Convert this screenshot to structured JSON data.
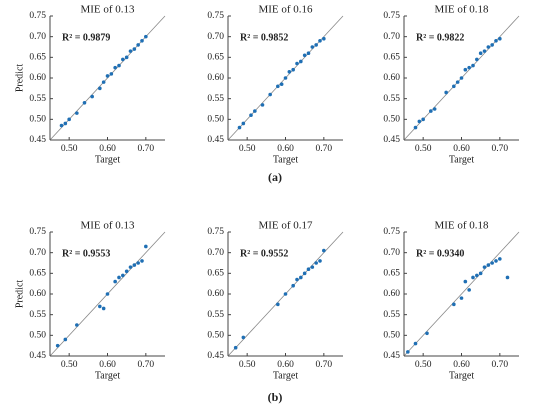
{
  "chart_data": [
    {
      "type": "scatter",
      "title": "MIE of 0.13",
      "annotation": "R² = 0.9879",
      "xlabel": "Target",
      "ylabel": "Predict",
      "x": [
        0.48,
        0.49,
        0.5,
        0.52,
        0.54,
        0.56,
        0.58,
        0.59,
        0.6,
        0.61,
        0.62,
        0.63,
        0.64,
        0.65,
        0.66,
        0.67,
        0.68,
        0.69,
        0.7
      ],
      "y": [
        0.485,
        0.49,
        0.5,
        0.515,
        0.54,
        0.555,
        0.575,
        0.59,
        0.605,
        0.61,
        0.625,
        0.63,
        0.645,
        0.65,
        0.665,
        0.67,
        0.68,
        0.69,
        0.7
      ],
      "color": "#1f6fb4",
      "xlim": [
        0.45,
        0.75
      ],
      "ylim": [
        0.45,
        0.75
      ],
      "xticks": [
        {
          "value": 0.5,
          "label": "0.50"
        },
        {
          "value": 0.6,
          "label": "0.60"
        },
        {
          "value": 0.7,
          "label": "0.70"
        }
      ],
      "yticks": [
        {
          "value": 0.45,
          "label": "0.45"
        },
        {
          "value": 0.5,
          "label": "0.50"
        },
        {
          "value": 0.55,
          "label": "0.55"
        },
        {
          "value": 0.6,
          "label": "0.60"
        },
        {
          "value": 0.65,
          "label": "0.65"
        },
        {
          "value": 0.7,
          "label": "0.70"
        },
        {
          "value": 0.75,
          "label": "0.75"
        }
      ]
    },
    {
      "type": "scatter",
      "title": "MIE of 0.16",
      "annotation": "R² = 0.9852",
      "xlabel": "Target",
      "x": [
        0.48,
        0.49,
        0.51,
        0.52,
        0.54,
        0.56,
        0.58,
        0.59,
        0.6,
        0.61,
        0.62,
        0.63,
        0.64,
        0.65,
        0.66,
        0.67,
        0.68,
        0.69,
        0.7
      ],
      "y": [
        0.48,
        0.49,
        0.51,
        0.52,
        0.535,
        0.56,
        0.58,
        0.585,
        0.6,
        0.615,
        0.62,
        0.635,
        0.64,
        0.655,
        0.66,
        0.675,
        0.68,
        0.69,
        0.695
      ],
      "color": "#1f6fb4",
      "xlim": [
        0.45,
        0.75
      ],
      "ylim": [
        0.45,
        0.75
      ],
      "xticks": [
        {
          "value": 0.5,
          "label": "0.50"
        },
        {
          "value": 0.6,
          "label": "0.60"
        },
        {
          "value": 0.7,
          "label": "0.70"
        }
      ],
      "yticks": [
        {
          "value": 0.45,
          "label": "0.45"
        },
        {
          "value": 0.5,
          "label": "0.50"
        },
        {
          "value": 0.55,
          "label": "0.55"
        },
        {
          "value": 0.6,
          "label": "0.60"
        },
        {
          "value": 0.65,
          "label": "0.65"
        },
        {
          "value": 0.7,
          "label": "0.70"
        },
        {
          "value": 0.75,
          "label": "0.75"
        }
      ]
    },
    {
      "type": "scatter",
      "title": "MIE of 0.18",
      "annotation": "R² = 0.9822",
      "xlabel": "Target",
      "x": [
        0.48,
        0.49,
        0.5,
        0.52,
        0.53,
        0.56,
        0.58,
        0.59,
        0.6,
        0.61,
        0.62,
        0.63,
        0.64,
        0.65,
        0.66,
        0.67,
        0.68,
        0.69,
        0.7
      ],
      "y": [
        0.48,
        0.495,
        0.5,
        0.52,
        0.525,
        0.565,
        0.58,
        0.59,
        0.6,
        0.62,
        0.625,
        0.63,
        0.645,
        0.66,
        0.665,
        0.675,
        0.68,
        0.69,
        0.695
      ],
      "color": "#1f6fb4",
      "xlim": [
        0.45,
        0.75
      ],
      "ylim": [
        0.45,
        0.75
      ],
      "xticks": [
        {
          "value": 0.5,
          "label": "0.50"
        },
        {
          "value": 0.6,
          "label": "0.60"
        },
        {
          "value": 0.7,
          "label": "0.70"
        }
      ],
      "yticks": [
        {
          "value": 0.45,
          "label": "0.45"
        },
        {
          "value": 0.5,
          "label": "0.50"
        },
        {
          "value": 0.55,
          "label": "0.55"
        },
        {
          "value": 0.6,
          "label": "0.60"
        },
        {
          "value": 0.65,
          "label": "0.65"
        },
        {
          "value": 0.7,
          "label": "0.70"
        },
        {
          "value": 0.75,
          "label": "0.75"
        }
      ]
    },
    {
      "type": "scatter",
      "title": "MIE of 0.13",
      "annotation": "R² = 0.9553",
      "xlabel": "Target",
      "ylabel": "Predict",
      "x": [
        0.47,
        0.49,
        0.52,
        0.58,
        0.59,
        0.6,
        0.62,
        0.63,
        0.64,
        0.65,
        0.66,
        0.67,
        0.68,
        0.69,
        0.7
      ],
      "y": [
        0.475,
        0.49,
        0.525,
        0.57,
        0.565,
        0.6,
        0.63,
        0.64,
        0.645,
        0.655,
        0.665,
        0.67,
        0.675,
        0.68,
        0.715
      ],
      "color": "#1f6fb4",
      "xlim": [
        0.45,
        0.75
      ],
      "ylim": [
        0.45,
        0.75
      ],
      "xticks": [
        {
          "value": 0.5,
          "label": "0.50"
        },
        {
          "value": 0.6,
          "label": "0.60"
        },
        {
          "value": 0.7,
          "label": "0.70"
        }
      ],
      "yticks": [
        {
          "value": 0.45,
          "label": "0.45"
        },
        {
          "value": 0.5,
          "label": "0.50"
        },
        {
          "value": 0.55,
          "label": "0.55"
        },
        {
          "value": 0.6,
          "label": "0.60"
        },
        {
          "value": 0.65,
          "label": "0.65"
        },
        {
          "value": 0.7,
          "label": "0.70"
        },
        {
          "value": 0.75,
          "label": "0.75"
        }
      ]
    },
    {
      "type": "scatter",
      "title": "MIE of 0.17",
      "annotation": "R² = 0.9552",
      "xlabel": "Target",
      "x": [
        0.47,
        0.49,
        0.58,
        0.6,
        0.62,
        0.63,
        0.64,
        0.65,
        0.66,
        0.67,
        0.68,
        0.69,
        0.7
      ],
      "y": [
        0.47,
        0.495,
        0.575,
        0.6,
        0.62,
        0.635,
        0.64,
        0.65,
        0.66,
        0.665,
        0.675,
        0.68,
        0.705
      ],
      "color": "#1f6fb4",
      "xlim": [
        0.45,
        0.75
      ],
      "ylim": [
        0.45,
        0.75
      ],
      "xticks": [
        {
          "value": 0.5,
          "label": "0.50"
        },
        {
          "value": 0.6,
          "label": "0.60"
        },
        {
          "value": 0.7,
          "label": "0.70"
        }
      ],
      "yticks": [
        {
          "value": 0.45,
          "label": "0.45"
        },
        {
          "value": 0.5,
          "label": "0.50"
        },
        {
          "value": 0.55,
          "label": "0.55"
        },
        {
          "value": 0.6,
          "label": "0.60"
        },
        {
          "value": 0.65,
          "label": "0.65"
        },
        {
          "value": 0.7,
          "label": "0.70"
        },
        {
          "value": 0.75,
          "label": "0.75"
        }
      ]
    },
    {
      "type": "scatter",
      "title": "MIE of 0.18",
      "annotation": "R² = 0.9340",
      "xlabel": "Target",
      "x": [
        0.46,
        0.48,
        0.51,
        0.58,
        0.6,
        0.61,
        0.62,
        0.63,
        0.64,
        0.65,
        0.66,
        0.67,
        0.68,
        0.69,
        0.7,
        0.72
      ],
      "y": [
        0.46,
        0.48,
        0.505,
        0.575,
        0.59,
        0.63,
        0.61,
        0.64,
        0.645,
        0.65,
        0.665,
        0.67,
        0.675,
        0.68,
        0.685,
        0.64
      ],
      "color": "#1f6fb4",
      "xlim": [
        0.45,
        0.75
      ],
      "ylim": [
        0.45,
        0.75
      ],
      "xticks": [
        {
          "value": 0.5,
          "label": "0.50"
        },
        {
          "value": 0.6,
          "label": "0.60"
        },
        {
          "value": 0.7,
          "label": "0.70"
        }
      ],
      "yticks": [
        {
          "value": 0.45,
          "label": "0.45"
        },
        {
          "value": 0.5,
          "label": "0.50"
        },
        {
          "value": 0.55,
          "label": "0.55"
        },
        {
          "value": 0.6,
          "label": "0.60"
        },
        {
          "value": 0.65,
          "label": "0.65"
        },
        {
          "value": 0.7,
          "label": "0.70"
        },
        {
          "value": 0.75,
          "label": "0.75"
        }
      ]
    }
  ],
  "panel_labels": [
    "(a)",
    "(b)"
  ]
}
